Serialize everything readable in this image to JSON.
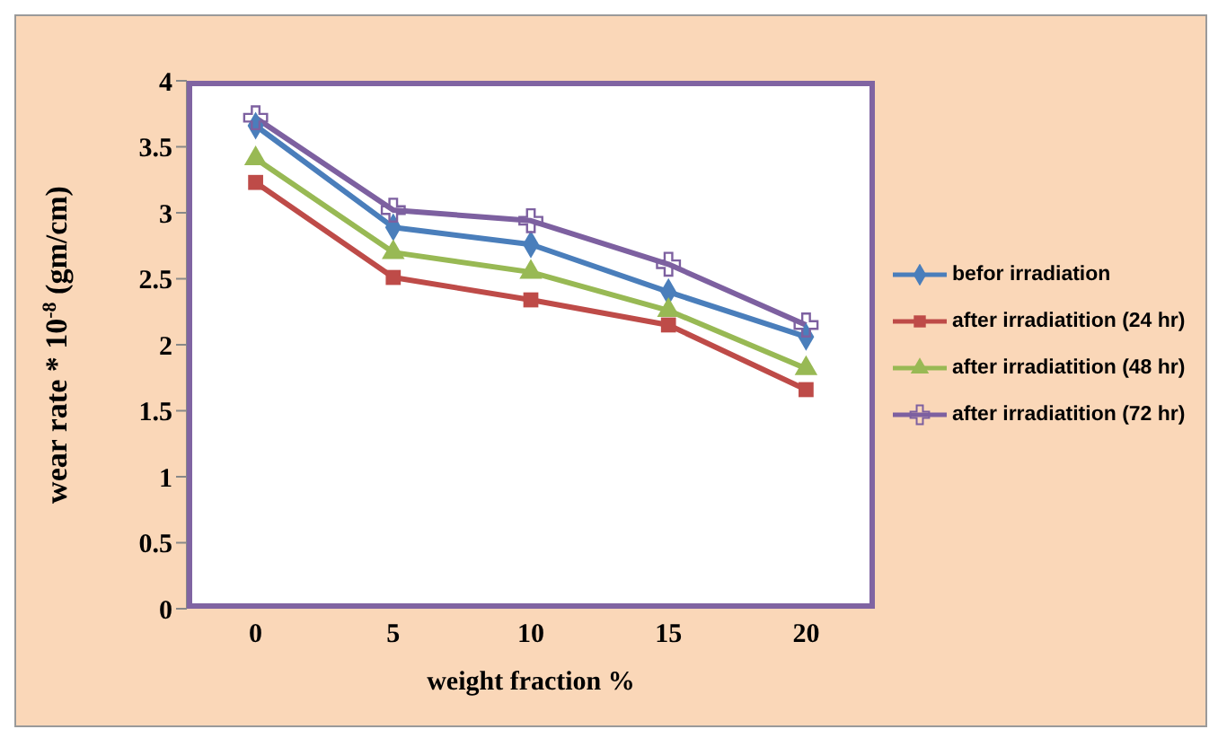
{
  "chart_data": {
    "type": "line",
    "xlabel": "weight fraction %",
    "ylabel": "wear rate * 10$^{-8}$ (gm/cm)",
    "categories": [
      "0",
      "5",
      "10",
      "15",
      "20"
    ],
    "ylim": [
      0,
      4
    ],
    "yticks": [
      0,
      0.5,
      1,
      1.5,
      2,
      2.5,
      3,
      3.5,
      4
    ],
    "grid": false,
    "legend": "right",
    "series": [
      {
        "name": "befor irradiation",
        "color": "#4a7ebb",
        "marker": "diamond",
        "values": [
          3.66,
          2.89,
          2.76,
          2.4,
          2.06
        ]
      },
      {
        "name": "after irradiatition (24 hr)",
        "color": "#be4b48",
        "marker": "square",
        "values": [
          3.23,
          2.51,
          2.34,
          2.15,
          1.66
        ]
      },
      {
        "name": "after irradiatition (48 hr)",
        "color": "#98b954",
        "marker": "triangle",
        "values": [
          3.41,
          2.7,
          2.55,
          2.26,
          1.82
        ]
      },
      {
        "name": "after irradiatition (72 hr)",
        "color": "#7d60a0",
        "marker": "cross",
        "values": [
          3.72,
          3.02,
          2.94,
          2.61,
          2.15
        ]
      }
    ]
  }
}
